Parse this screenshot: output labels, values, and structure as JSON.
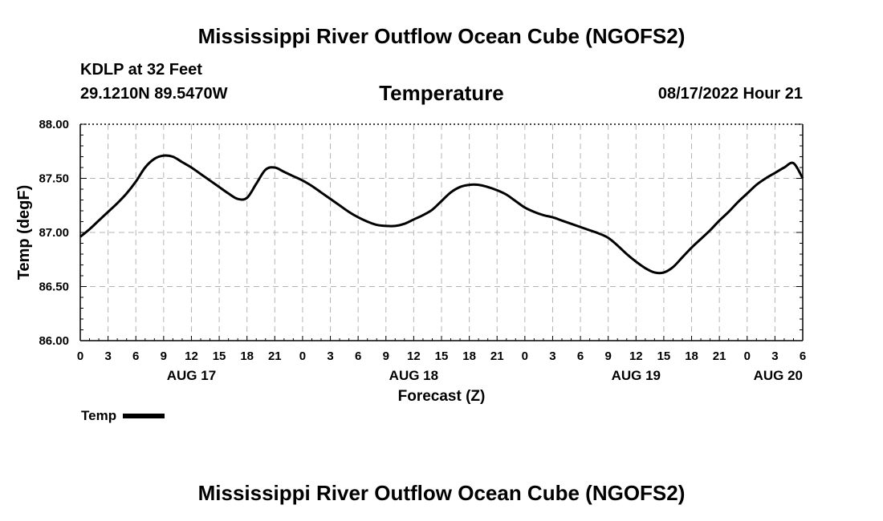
{
  "header": {
    "title": "Mississippi River Outflow Ocean Cube (NGOFS2)",
    "station": "KDLP at 32 Feet",
    "coords": "29.1210N  89.5470W",
    "variable": "Temperature",
    "datetime": "08/17/2022 Hour 21"
  },
  "footer": {
    "title": "Mississippi River Outflow Ocean Cube (NGOFS2)"
  },
  "legend": {
    "label": "Temp"
  },
  "chart_data": {
    "type": "line",
    "title": "Temperature",
    "xlabel": "Forecast (Z)",
    "ylabel": "Temp (degF)",
    "ylim": [
      86.0,
      88.0
    ],
    "xlim": [
      0,
      78
    ],
    "grid": true,
    "y_ticks": [
      "86.00",
      "86.50",
      "87.00",
      "87.50",
      "88.00"
    ],
    "x_ticks": [
      "0",
      "3",
      "6",
      "9",
      "12",
      "15",
      "18",
      "21",
      "0",
      "3",
      "6",
      "9",
      "12",
      "15",
      "18",
      "21",
      "0",
      "3",
      "6",
      "9",
      "12",
      "15",
      "18",
      "21",
      "0",
      "3",
      "6"
    ],
    "day_labels": [
      {
        "label": "AUG 17",
        "hour": 12
      },
      {
        "label": "AUG 18",
        "hour": 36
      },
      {
        "label": "AUG 19",
        "hour": 60
      },
      {
        "label": "AUG 20",
        "hour": 78
      }
    ],
    "series": [
      {
        "name": "Temp",
        "x": [
          0,
          1,
          2,
          3,
          4,
          5,
          6,
          7,
          8,
          9,
          10,
          11,
          12,
          13,
          14,
          15,
          16,
          17,
          18,
          19,
          20,
          21,
          22,
          23,
          24,
          25,
          26,
          27,
          28,
          29,
          30,
          31,
          32,
          33,
          34,
          35,
          36,
          37,
          38,
          39,
          40,
          41,
          42,
          43,
          44,
          45,
          46,
          47,
          48,
          49,
          50,
          51,
          52,
          53,
          54,
          55,
          56,
          57,
          58,
          59,
          60,
          61,
          62,
          63,
          64,
          65,
          66,
          67,
          68,
          69,
          70,
          71,
          72,
          73,
          74,
          75,
          76,
          77,
          78
        ],
        "values": [
          86.96,
          87.03,
          87.11,
          87.19,
          87.27,
          87.36,
          87.47,
          87.6,
          87.68,
          87.71,
          87.7,
          87.65,
          87.6,
          87.54,
          87.48,
          87.42,
          87.36,
          87.31,
          87.32,
          87.45,
          87.58,
          87.6,
          87.56,
          87.52,
          87.48,
          87.43,
          87.37,
          87.31,
          87.25,
          87.19,
          87.14,
          87.1,
          87.07,
          87.06,
          87.06,
          87.08,
          87.12,
          87.16,
          87.21,
          87.29,
          87.37,
          87.42,
          87.44,
          87.44,
          87.42,
          87.39,
          87.35,
          87.29,
          87.23,
          87.19,
          87.16,
          87.14,
          87.11,
          87.08,
          87.05,
          87.02,
          86.99,
          86.95,
          86.88,
          86.8,
          86.73,
          86.67,
          86.63,
          86.63,
          86.68,
          86.77,
          86.86,
          86.94,
          87.02,
          87.11,
          87.19,
          87.28,
          87.36,
          87.44,
          87.5,
          87.55,
          87.6,
          87.64,
          87.5
        ]
      }
    ]
  }
}
